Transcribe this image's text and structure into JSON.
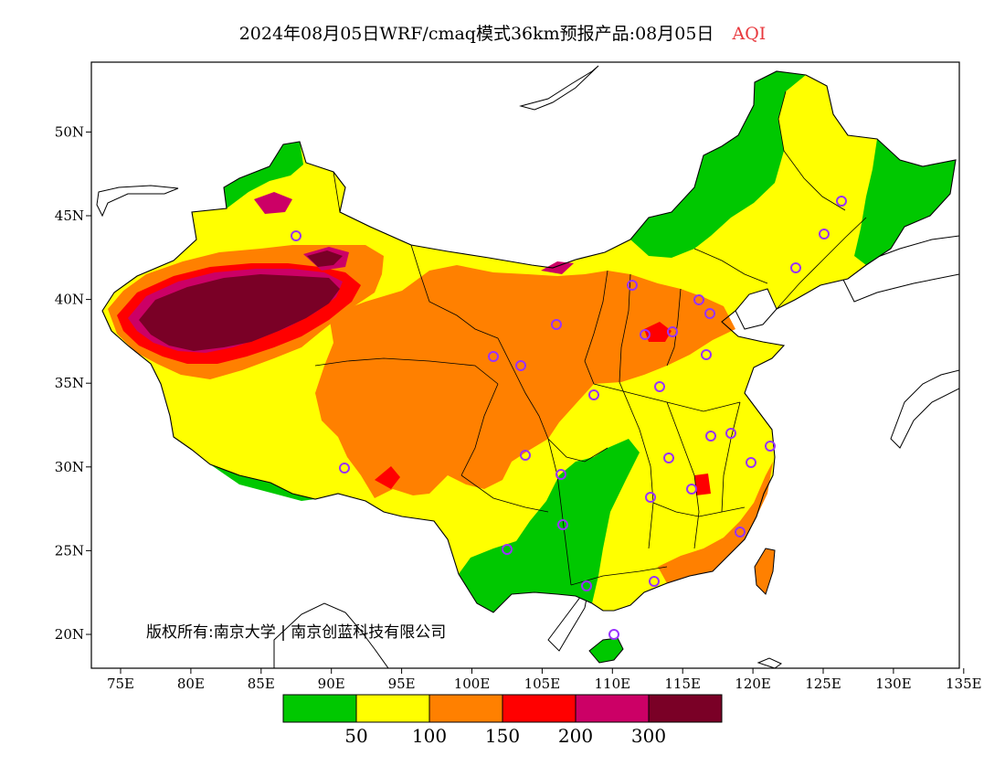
{
  "title": {
    "main": "2024年08月05日WRF/cmaq模式36km预报产品:08月05日",
    "variable": "AQI"
  },
  "credit": {
    "text": "版权所有:南京大学 | 南京创蓝科技有限公司"
  },
  "axes": {
    "lon_ticks": [
      "75E",
      "80E",
      "85E",
      "90E",
      "95E",
      "100E",
      "105E",
      "110E",
      "115E",
      "120E",
      "125E",
      "130E",
      "135E"
    ],
    "lat_ticks": [
      "20N",
      "25N",
      "30N",
      "35N",
      "40N",
      "45N",
      "50N"
    ]
  },
  "legend": {
    "colors": [
      "#00c800",
      "#ffff00",
      "#ff8000",
      "#ff0000",
      "#cc0066",
      "#7a0026"
    ],
    "labels": [
      "50",
      "100",
      "150",
      "200",
      "300"
    ]
  },
  "colors": {
    "good": "#00c800",
    "moderate": "#ffff00",
    "sensitive": "#ff8000",
    "unhealthy": "#ff0000",
    "very_unhealthy": "#cc0066",
    "hazardous": "#7a0026",
    "city_marker": "#9933ff"
  }
}
